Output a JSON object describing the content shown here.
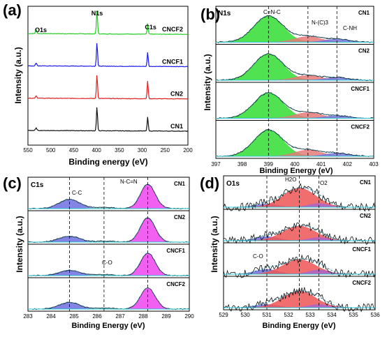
{
  "chart_data": [
    {
      "panel": "(a)",
      "type": "line",
      "xlabel": "Binding energy (eV)",
      "ylabel": "Intensity (a.u.)",
      "xlim": [
        550,
        200
      ],
      "x_reversed": true,
      "x_ticks": [
        "550",
        "500",
        "450",
        "400",
        "350",
        "300",
        "250",
        "200"
      ],
      "annotations": [
        "O1s",
        "N1s",
        "C1s"
      ],
      "peaks_eV": {
        "O1s": 532,
        "N1s": 399,
        "C1s": 288
      },
      "series": [
        {
          "name": "CNCF2",
          "color": "#22cc22",
          "offset": 4,
          "peak_heights": {
            "O1s": 0.15,
            "N1s": 1.0,
            "C1s": 0.45
          }
        },
        {
          "name": "CNCF1",
          "color": "#1a1aee",
          "offset": 3,
          "peak_heights": {
            "O1s": 0.12,
            "N1s": 1.0,
            "C1s": 0.6
          }
        },
        {
          "name": "CN2",
          "color": "#e02020",
          "offset": 2,
          "peak_heights": {
            "O1s": 0.1,
            "N1s": 1.0,
            "C1s": 0.75
          }
        },
        {
          "name": "CN1",
          "color": "#111111",
          "offset": 1,
          "peak_heights": {
            "O1s": 0.1,
            "N1s": 1.0,
            "C1s": 0.6
          }
        }
      ],
      "grid": false
    },
    {
      "panel": "(b)",
      "type": "area",
      "title": "N1s",
      "xlabel": "Binding Energy (eV)",
      "ylabel": "Intensity (a.u.)",
      "xlim": [
        397,
        403
      ],
      "x_ticks": [
        "397",
        "398",
        "399",
        "400",
        "401",
        "402",
        "403"
      ],
      "annotations": [
        "C=N-C",
        "N-(C)3",
        "C-NH"
      ],
      "guide_lines_eV": [
        399,
        400.5,
        401.6
      ],
      "components": [
        {
          "label": "C=N-C",
          "center": 399.0,
          "color": "#33dd33"
        },
        {
          "label": "N-(C)3",
          "center": 400.5,
          "color": "#e87a7a"
        },
        {
          "label": "C-NH",
          "center": 401.6,
          "color": "#7777dd"
        }
      ],
      "subplots": [
        "CN1",
        "CN2",
        "CNCF1",
        "CNCF2"
      ]
    },
    {
      "panel": "(c)",
      "type": "area",
      "title": "C1s",
      "xlabel": "Binding Energy (eV)",
      "ylabel": "Intensity (a.u.)",
      "xlim": [
        283,
        290
      ],
      "x_ticks": [
        "283",
        "284",
        "285",
        "286",
        "287",
        "288",
        "289",
        "290"
      ],
      "annotations": [
        "C-C",
        "N-C=N",
        "C-O"
      ],
      "guide_lines_eV": [
        284.8,
        286.3,
        288.2
      ],
      "components": [
        {
          "label": "C-C",
          "center": 284.8,
          "color": "#6f6fe0"
        },
        {
          "label": "C-O",
          "center": 286.3,
          "color": "#cccccc"
        },
        {
          "label": "N-C=N",
          "center": 288.2,
          "color": "#ee44ee"
        }
      ],
      "subplots": [
        "CN1",
        "CN2",
        "CNCF1",
        "CNCF2"
      ]
    },
    {
      "panel": "(d)",
      "type": "area",
      "title": "O1s",
      "xlabel": "Binding Energy (eV)",
      "ylabel": "Intensity (a.u.)",
      "xlim": [
        529,
        536
      ],
      "x_ticks": [
        "529",
        "530",
        "531",
        "532",
        "533",
        "534",
        "535",
        "536"
      ],
      "annotations": [
        "H2O",
        "O2",
        "C-O"
      ],
      "guide_lines_eV": [
        531,
        532.5,
        533.4
      ],
      "components": [
        {
          "label": "C-O",
          "center": 531.0,
          "color": "#6f6fe0"
        },
        {
          "label": "H2O",
          "center": 532.5,
          "color": "#ee5555"
        },
        {
          "label": "O2",
          "center": 533.4,
          "color": "#aa66cc"
        }
      ],
      "subplots": [
        "CN1",
        "CN2",
        "CNCF1",
        "CNCF2"
      ]
    }
  ]
}
